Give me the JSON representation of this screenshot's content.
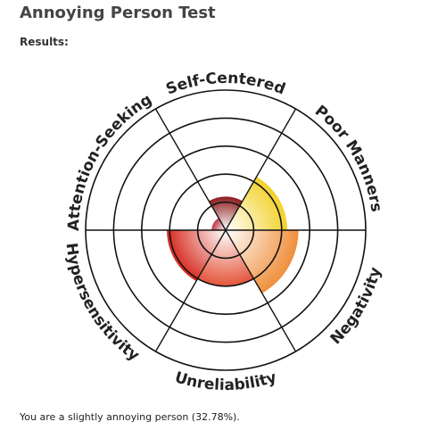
{
  "title": "Annoying Person Test",
  "subtitle": "Results:",
  "chart_data": {
    "type": "polar",
    "categories": [
      "Self-Centered",
      "Poor Manners",
      "Negativity",
      "Unreliability",
      "Hypersensitivity",
      "Attention-Seeking"
    ],
    "values": [
      1.2,
      2.2,
      2.6,
      2.0,
      2.1,
      0.5
    ],
    "colors": [
      "#8e1c1c",
      "#f2d22a",
      "#ef8f3c",
      "#e4553a",
      "#d62a1e",
      "#b83a4a"
    ],
    "rlim": [
      0,
      5
    ],
    "rticks": [
      1,
      2,
      3,
      4,
      5
    ]
  },
  "result": "You are a slightly annoying person (32.78%)."
}
